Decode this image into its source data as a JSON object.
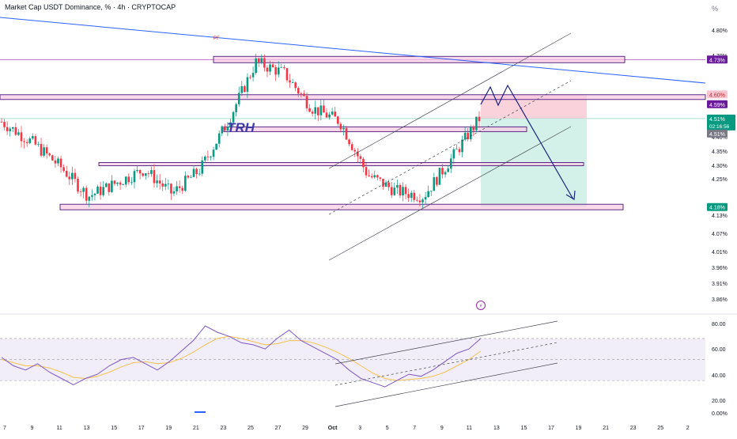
{
  "header": {
    "title": "Market Cap USDT Dominance, % · 4h · CRYPTOCAP",
    "percent_label": "%"
  },
  "annotations": {
    "trh": "TRH",
    "pf": "PF"
  },
  "price_labels": {
    "zone_top": "4.73%",
    "target_level": "4.60%",
    "trendline_level": "4.59%",
    "current_price": "4.51%",
    "countdown": "02:16:56",
    "current_price_alt": "4.51%",
    "bottom_zone": "4.18%"
  },
  "colors": {
    "up": "#089981",
    "down": "#f23645",
    "zone_border": "#5b2a86",
    "zone_fill": "#f8c9e3",
    "trendline": "#2962ff",
    "rsi_line": "#7e57c2",
    "rsi_ma": "#f5c24e",
    "rsi_band": "#ede7f6",
    "projection": "#1a237e"
  },
  "chart_data": [
    {
      "type": "candlestick",
      "title": "Market Cap USDT Dominance, % · 4h · CRYPTOCAP",
      "y_axis_ticks": [
        "4.80%",
        "4.70%",
        "4.40%",
        "4.35%",
        "4.30%",
        "4.25%",
        "4.13%",
        "4.07%",
        "4.01%",
        "3.96%",
        "3.91%",
        "3.86%"
      ],
      "x_axis_ticks": [
        "7",
        "9",
        "11",
        "13",
        "15",
        "17",
        "19",
        "21",
        "23",
        "25",
        "27",
        "29",
        "Oct",
        "3",
        "5",
        "7",
        "9",
        "11",
        "13",
        "15",
        "17",
        "19",
        "21",
        "23",
        "25",
        "2"
      ],
      "ylim": [
        3.84,
        4.84
      ],
      "close_path": [
        {
          "x": "7",
          "y": 4.49
        },
        {
          "x": "9",
          "y": 4.42
        },
        {
          "x": "11",
          "y": 4.33
        },
        {
          "x": "13",
          "y": 4.22
        },
        {
          "x": "15",
          "y": 4.27
        },
        {
          "x": "17",
          "y": 4.32
        },
        {
          "x": "19",
          "y": 4.23
        },
        {
          "x": "21",
          "y": 4.32
        },
        {
          "x": "23",
          "y": 4.5
        },
        {
          "x": "25",
          "y": 4.72
        },
        {
          "x": "27",
          "y": 4.68
        },
        {
          "x": "29",
          "y": 4.55
        },
        {
          "x": "Oct",
          "y": 4.5
        },
        {
          "x": "3",
          "y": 4.3
        },
        {
          "x": "5",
          "y": 4.24
        },
        {
          "x": "7",
          "y": 4.22
        },
        {
          "x": "9",
          "y": 4.36
        },
        {
          "x": "11",
          "y": 4.51
        }
      ],
      "horizontal_levels": [
        4.73,
        4.59,
        4.47,
        4.34,
        4.18
      ],
      "position_box": {
        "entry": 4.51,
        "stop": 4.6,
        "target": 4.18
      },
      "trendline": "descending",
      "channel": "ascending",
      "legend": "none",
      "grid": false
    },
    {
      "type": "line",
      "y_axis_ticks": [
        "80.00",
        "60.00",
        "40.00",
        "20.00",
        "0.00%"
      ],
      "ylim": [
        0,
        85
      ],
      "band": [
        30,
        70
      ],
      "midline": 50,
      "series": [
        {
          "values": [
            52,
            44,
            40,
            46,
            38,
            32,
            26,
            32,
            36,
            44,
            50,
            52,
            46,
            40,
            48,
            58,
            68,
            82,
            76,
            72,
            66,
            64,
            60,
            70,
            78,
            68,
            62,
            56,
            50,
            40,
            32,
            28,
            24,
            30,
            36,
            34,
            40,
            48,
            56,
            60,
            70
          ]
        },
        {
          "values": [
            50,
            47,
            44,
            44,
            42,
            38,
            33,
            32,
            34,
            38,
            43,
            47,
            48,
            46,
            47,
            51,
            57,
            64,
            70,
            72,
            70,
            67,
            64,
            65,
            68,
            68,
            66,
            62,
            57,
            51,
            44,
            37,
            32,
            30,
            31,
            32,
            34,
            38,
            44,
            50,
            58
          ]
        }
      ],
      "channel": "ascending",
      "legend": "none"
    }
  ]
}
